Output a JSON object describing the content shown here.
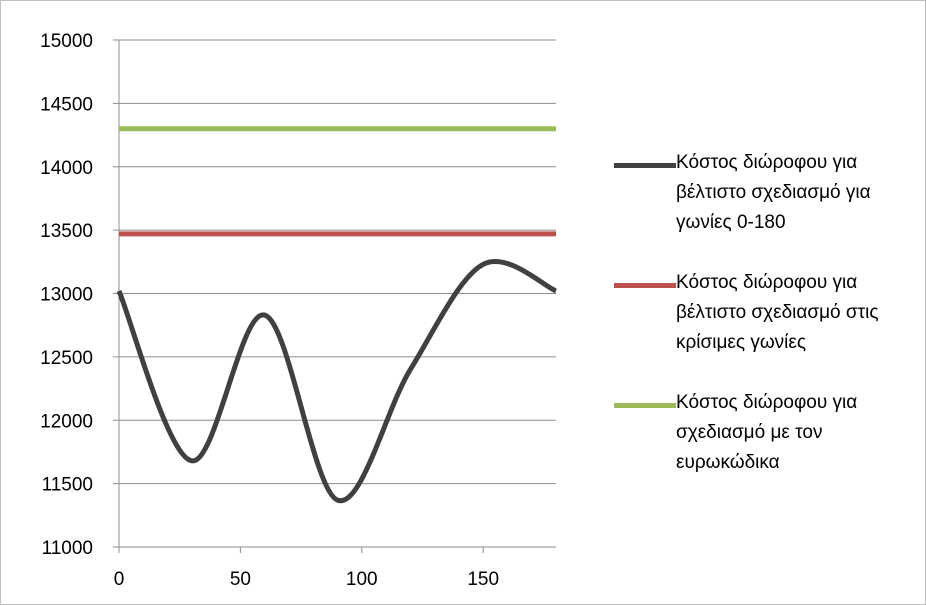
{
  "chart_data": {
    "type": "line",
    "xlabel": "",
    "ylabel": "",
    "xlim": [
      0,
      180
    ],
    "ylim": [
      11000,
      15000
    ],
    "x_ticks": [
      0,
      50,
      100,
      150
    ],
    "y_ticks": [
      11000,
      11500,
      12000,
      12500,
      13000,
      13500,
      14000,
      14500,
      15000
    ],
    "grid": "horizontal",
    "legend_position": "right",
    "series": [
      {
        "name": "Κόστος διώροφου για βέλτιστο σχεδιασμό για γωνίες 0-180",
        "color": "#404040",
        "x": [
          0,
          30,
          60,
          90,
          120,
          150,
          180
        ],
        "y": [
          13020,
          11680,
          12830,
          11370,
          12400,
          13230,
          13020
        ]
      },
      {
        "name": "Κόστος διώροφου για βέλτιστο σχεδιασμό στις κρίσιμες γωνίες",
        "color": "#c0504d",
        "x": [
          0,
          180
        ],
        "y": [
          13470,
          13470
        ]
      },
      {
        "name": "Κόστος διώροφου για σχεδιασμό με τον ευρωκώδικα",
        "color": "#9bbb59",
        "x": [
          0,
          180
        ],
        "y": [
          14300,
          14300
        ]
      }
    ]
  }
}
